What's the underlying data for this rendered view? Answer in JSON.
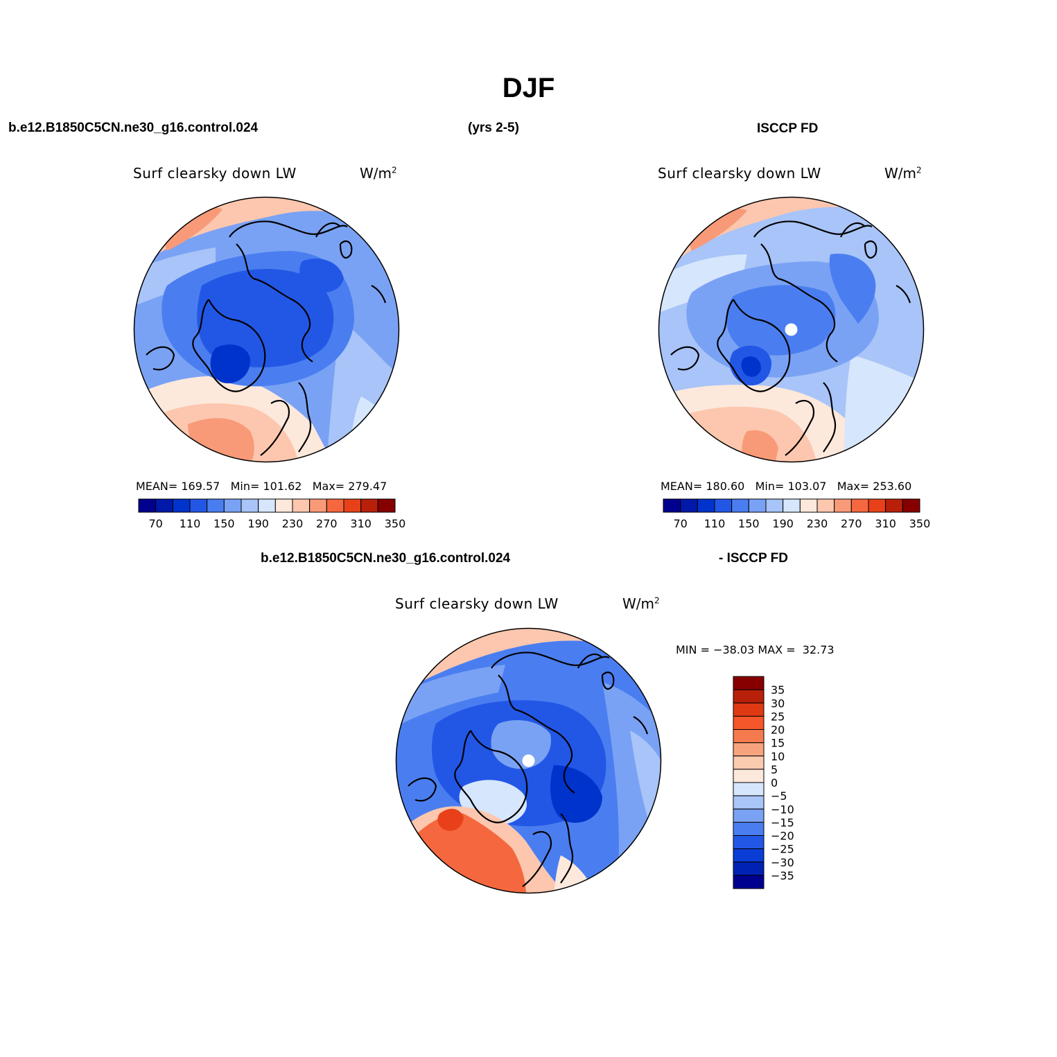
{
  "title": "DJF",
  "headers": {
    "model_case": "b.e12.B1850C5CN.ne30_g16.control.024",
    "years": "(yrs 2-5)",
    "obs": "ISCCP FD",
    "diff_case": "b.e12.B1850C5CN.ne30_g16.control.024",
    "diff_obs": "- ISCCP FD"
  },
  "variable": "Surf clearsky down LW",
  "units_base": "W/m",
  "units_exp": "2",
  "panels": {
    "model": {
      "mean_label": "MEAN=",
      "mean": "169.57",
      "min_label": "Min=",
      "min": "101.62",
      "max_label": "Max=",
      "max": "279.47"
    },
    "obs": {
      "mean_label": "MEAN=",
      "mean": "180.60",
      "min_label": "Min=",
      "min": "103.07",
      "max_label": "Max=",
      "max": "253.60"
    },
    "diff": {
      "min_label": "MIN =",
      "min": "−38.03",
      "max_label": "MAX =",
      "max": "32.73"
    }
  },
  "colorbar_abs": {
    "colors": [
      "#00008f",
      "#0019a8",
      "#0033cc",
      "#2257e6",
      "#4a7ef0",
      "#7aa2f4",
      "#a8c4f8",
      "#d6e6fc",
      "#fde8dc",
      "#fcc7ae",
      "#f89a78",
      "#f5683f",
      "#e8411a",
      "#b8200a",
      "#860000"
    ],
    "tick_labels": [
      "70",
      "110",
      "150",
      "190",
      "230",
      "270",
      "310",
      "350"
    ]
  },
  "colorbar_diff": {
    "colors": [
      "#860000",
      "#b8200a",
      "#e03a14",
      "#f5562a",
      "#f57b4f",
      "#f7a47e",
      "#fbcbb0",
      "#fde8dc",
      "#d6e6fc",
      "#aac6f8",
      "#7aa2f4",
      "#4a7ef0",
      "#2257e6",
      "#0a3dd6",
      "#0022b4",
      "#00008f"
    ],
    "tick_labels": [
      "35",
      "30",
      "25",
      "20",
      "15",
      "10",
      "5",
      "0",
      "−5",
      "−10",
      "−15",
      "−20",
      "−25",
      "−30",
      "−35"
    ]
  },
  "chart_data": [
    {
      "type": "heatmap",
      "title": "Surf clearsky down LW",
      "subtitle": "b.e12.B1850C5CN.ne30_g16.control.024 (yrs 2-5)",
      "units": "W/m2",
      "projection": "north polar stereographic",
      "mean": 169.57,
      "min": 101.62,
      "max": 279.47,
      "levels": [
        70,
        90,
        110,
        130,
        150,
        170,
        190,
        210,
        230,
        250,
        270,
        290,
        310,
        330,
        350
      ]
    },
    {
      "type": "heatmap",
      "title": "Surf clearsky down LW",
      "subtitle": "ISCCP FD",
      "units": "W/m2",
      "projection": "north polar stereographic",
      "mean": 180.6,
      "min": 103.07,
      "max": 253.6,
      "levels": [
        70,
        90,
        110,
        130,
        150,
        170,
        190,
        210,
        230,
        250,
        270,
        290,
        310,
        330,
        350
      ]
    },
    {
      "type": "heatmap",
      "title": "Surf clearsky down LW",
      "subtitle": "b.e12.B1850C5CN.ne30_g16.control.024 - ISCCP FD",
      "units": "W/m2",
      "projection": "north polar stereographic",
      "min": -38.03,
      "max": 32.73,
      "levels": [
        -35,
        -30,
        -25,
        -20,
        -15,
        -10,
        -5,
        0,
        5,
        10,
        15,
        20,
        25,
        30,
        35
      ]
    }
  ]
}
